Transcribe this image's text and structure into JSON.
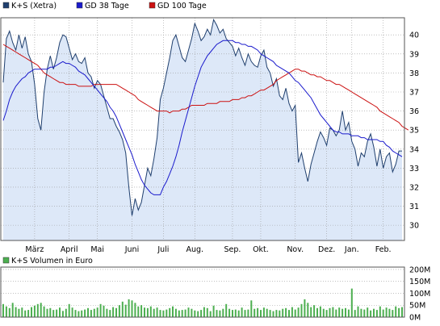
{
  "chart_data": [
    {
      "type": "line",
      "panel": "price",
      "legend_placement": "top-left",
      "grid": true,
      "ylim": [
        29.2,
        40.9
      ],
      "y_ticks": [
        "30",
        "31",
        "32",
        "33",
        "34",
        "35",
        "36",
        "37",
        "38",
        "39",
        "40"
      ],
      "y_tick_values": [
        30,
        31,
        32,
        33,
        34,
        35,
        36,
        37,
        38,
        39,
        40
      ],
      "x_ticks": [
        "März",
        "April",
        "Mai",
        "Juni",
        "Juli",
        "Aug.",
        "Sep.",
        "Okt.",
        "Nov.",
        "Dez.",
        "Jan.",
        "Feb."
      ],
      "x_tick_index": [
        10,
        21,
        30,
        41,
        51,
        61,
        73,
        82,
        93,
        103,
        111,
        121
      ],
      "series": [
        {
          "name": "K+S (Xetra)",
          "color": "#1f3f6e",
          "fill": "#dde8f8",
          "style": "area",
          "values": [
            37.5,
            39.8,
            40.2,
            39.6,
            39.2,
            40.0,
            39.3,
            39.9,
            39.0,
            38.6,
            37.4,
            35.6,
            35.0,
            37.0,
            38.2,
            38.9,
            38.2,
            38.8,
            39.6,
            40.0,
            39.9,
            39.3,
            38.7,
            39.0,
            38.6,
            38.5,
            38.8,
            38.0,
            37.8,
            37.2,
            37.6,
            37.4,
            36.8,
            36.2,
            35.6,
            35.6,
            35.2,
            34.9,
            34.5,
            33.8,
            32.0,
            30.5,
            31.4,
            30.8,
            31.2,
            32.1,
            33.0,
            32.6,
            33.5,
            34.6,
            36.6,
            37.2,
            38.0,
            38.8,
            39.7,
            40.0,
            39.4,
            38.8,
            38.6,
            39.2,
            39.8,
            40.6,
            40.2,
            39.7,
            39.9,
            40.3,
            40.0,
            40.8,
            40.5,
            40.1,
            40.3,
            39.8,
            39.6,
            39.4,
            38.9,
            39.3,
            38.8,
            38.4,
            39.0,
            38.6,
            38.4,
            38.3,
            38.9,
            39.2,
            38.3,
            38.0,
            37.3,
            37.7,
            36.8,
            36.6,
            37.2,
            36.4,
            36.0,
            36.3,
            33.3,
            33.8,
            33.0,
            32.3,
            33.2,
            33.8,
            34.4,
            34.9,
            34.6,
            34.2,
            35.1,
            35.0,
            34.7,
            35.0,
            36.0,
            35.0,
            35.4,
            34.4,
            34.0,
            33.1,
            33.8,
            33.6,
            34.4,
            34.8,
            34.1,
            33.1,
            34.0,
            33.0,
            33.6,
            33.8,
            32.8,
            33.2,
            33.9,
            33.9
          ]
        },
        {
          "name": "GD 38 Tage",
          "color": "#1a1acc",
          "style": "line",
          "values": [
            35.5,
            36.0,
            36.6,
            37.0,
            37.3,
            37.5,
            37.7,
            37.8,
            38.0,
            38.1,
            38.2,
            38.2,
            38.2,
            38.2,
            38.2,
            38.3,
            38.3,
            38.4,
            38.5,
            38.6,
            38.5,
            38.5,
            38.4,
            38.3,
            38.1,
            38.0,
            37.9,
            37.7,
            37.5,
            37.3,
            37.1,
            36.9,
            36.7,
            36.5,
            36.2,
            36.0,
            35.7,
            35.3,
            34.9,
            34.5,
            34.1,
            33.7,
            33.2,
            32.8,
            32.4,
            32.1,
            31.9,
            31.7,
            31.6,
            31.6,
            31.6,
            32.0,
            32.3,
            32.7,
            33.1,
            33.6,
            34.2,
            34.9,
            35.5,
            36.1,
            36.7,
            37.3,
            37.8,
            38.3,
            38.6,
            38.9,
            39.1,
            39.3,
            39.5,
            39.6,
            39.7,
            39.7,
            39.7,
            39.7,
            39.6,
            39.6,
            39.5,
            39.5,
            39.4,
            39.4,
            39.3,
            39.2,
            39.0,
            38.9,
            38.8,
            38.7,
            38.6,
            38.4,
            38.3,
            38.2,
            38.1,
            38.0,
            37.8,
            37.6,
            37.5,
            37.3,
            37.1,
            36.9,
            36.7,
            36.4,
            36.1,
            35.8,
            35.6,
            35.4,
            35.2,
            35.0,
            34.9,
            34.9,
            34.8,
            34.8,
            34.8,
            34.7,
            34.7,
            34.7,
            34.6,
            34.6,
            34.5,
            34.5,
            34.5,
            34.5,
            34.4,
            34.4,
            34.2,
            34.1,
            33.9,
            33.8,
            33.7,
            33.6
          ]
        },
        {
          "name": "GD 100 Tage",
          "color": "#cc1111",
          "style": "line",
          "values": [
            39.5,
            39.4,
            39.3,
            39.2,
            39.1,
            39.0,
            38.9,
            38.8,
            38.7,
            38.6,
            38.5,
            38.4,
            38.2,
            38.0,
            37.9,
            37.8,
            37.7,
            37.6,
            37.5,
            37.5,
            37.4,
            37.4,
            37.4,
            37.4,
            37.3,
            37.3,
            37.3,
            37.3,
            37.3,
            37.4,
            37.4,
            37.4,
            37.4,
            37.4,
            37.4,
            37.4,
            37.4,
            37.3,
            37.2,
            37.1,
            37.0,
            36.9,
            36.8,
            36.6,
            36.5,
            36.4,
            36.3,
            36.2,
            36.1,
            36.0,
            36.0,
            36.0,
            36.0,
            35.9,
            36.0,
            36.0,
            36.0,
            36.1,
            36.1,
            36.2,
            36.3,
            36.3,
            36.3,
            36.3,
            36.3,
            36.4,
            36.4,
            36.4,
            36.4,
            36.5,
            36.5,
            36.5,
            36.5,
            36.6,
            36.6,
            36.6,
            36.7,
            36.7,
            36.8,
            36.8,
            36.9,
            37.0,
            37.1,
            37.1,
            37.2,
            37.3,
            37.4,
            37.6,
            37.7,
            37.8,
            37.9,
            38.0,
            38.1,
            38.2,
            38.2,
            38.1,
            38.1,
            38.0,
            37.9,
            37.9,
            37.8,
            37.8,
            37.7,
            37.6,
            37.6,
            37.5,
            37.4,
            37.4,
            37.3,
            37.2,
            37.1,
            37.0,
            36.9,
            36.8,
            36.7,
            36.6,
            36.5,
            36.4,
            36.3,
            36.2,
            36.0,
            35.9,
            35.8,
            35.7,
            35.6,
            35.5,
            35.4,
            35.2,
            35.1,
            35.0
          ]
        }
      ]
    },
    {
      "type": "bar",
      "panel": "volume",
      "legend_placement": "top-left",
      "grid": true,
      "ylim": [
        0,
        210
      ],
      "y_ticks": [
        "0M",
        "50M",
        "100M",
        "150M",
        "200M"
      ],
      "y_tick_values": [
        0,
        50,
        100,
        150,
        200
      ],
      "series": [
        {
          "name": "K+S Volumen in Euro",
          "color": "#4caf50",
          "values": [
            55,
            45,
            38,
            60,
            42,
            35,
            40,
            28,
            30,
            42,
            48,
            55,
            60,
            45,
            35,
            38,
            30,
            32,
            40,
            26,
            35,
            55,
            40,
            30,
            25,
            28,
            32,
            38,
            30,
            35,
            40,
            55,
            48,
            35,
            30,
            42,
            38,
            50,
            65,
            52,
            75,
            70,
            60,
            45,
            50,
            40,
            38,
            45,
            35,
            40,
            30,
            28,
            32,
            38,
            45,
            35,
            28,
            30,
            32,
            40,
            35,
            28,
            25,
            30,
            42,
            38,
            25,
            48,
            30,
            28,
            35,
            55,
            35,
            30,
            32,
            28,
            40,
            30,
            32,
            70,
            35,
            38,
            30,
            40,
            35,
            30,
            25,
            30,
            28,
            35,
            38,
            30,
            42,
            32,
            40,
            55,
            75,
            60,
            42,
            50,
            38,
            45,
            35,
            30,
            38,
            42,
            32,
            40,
            35,
            38,
            32,
            120,
            30,
            45,
            35,
            32,
            40,
            28,
            35,
            30,
            45,
            32,
            40,
            35,
            30,
            45,
            38,
            42
          ]
        }
      ]
    }
  ]
}
